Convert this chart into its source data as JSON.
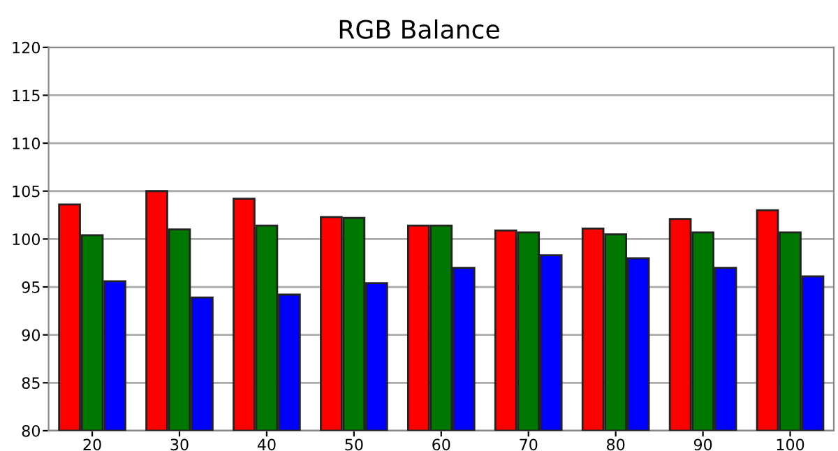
{
  "chart_data": {
    "type": "bar",
    "title": "RGB Balance",
    "categories": [
      "20",
      "30",
      "40",
      "50",
      "60",
      "70",
      "80",
      "90",
      "100"
    ],
    "series": [
      {
        "color": "#ff0000",
        "values": [
          103.6,
          105.0,
          104.2,
          102.3,
          101.4,
          100.9,
          101.1,
          102.1,
          103.0
        ]
      },
      {
        "color": "#007800",
        "values": [
          100.4,
          101.0,
          101.4,
          102.2,
          101.4,
          100.7,
          100.5,
          100.7,
          100.7
        ]
      },
      {
        "color": "#0000ff",
        "values": [
          95.6,
          93.9,
          94.2,
          95.4,
          97.0,
          98.3,
          98.0,
          97.0,
          96.1
        ]
      }
    ],
    "ylim": [
      80,
      120
    ],
    "yticks": [
      80,
      85,
      90,
      95,
      100,
      105,
      110,
      115,
      120
    ],
    "grid": "y"
  }
}
